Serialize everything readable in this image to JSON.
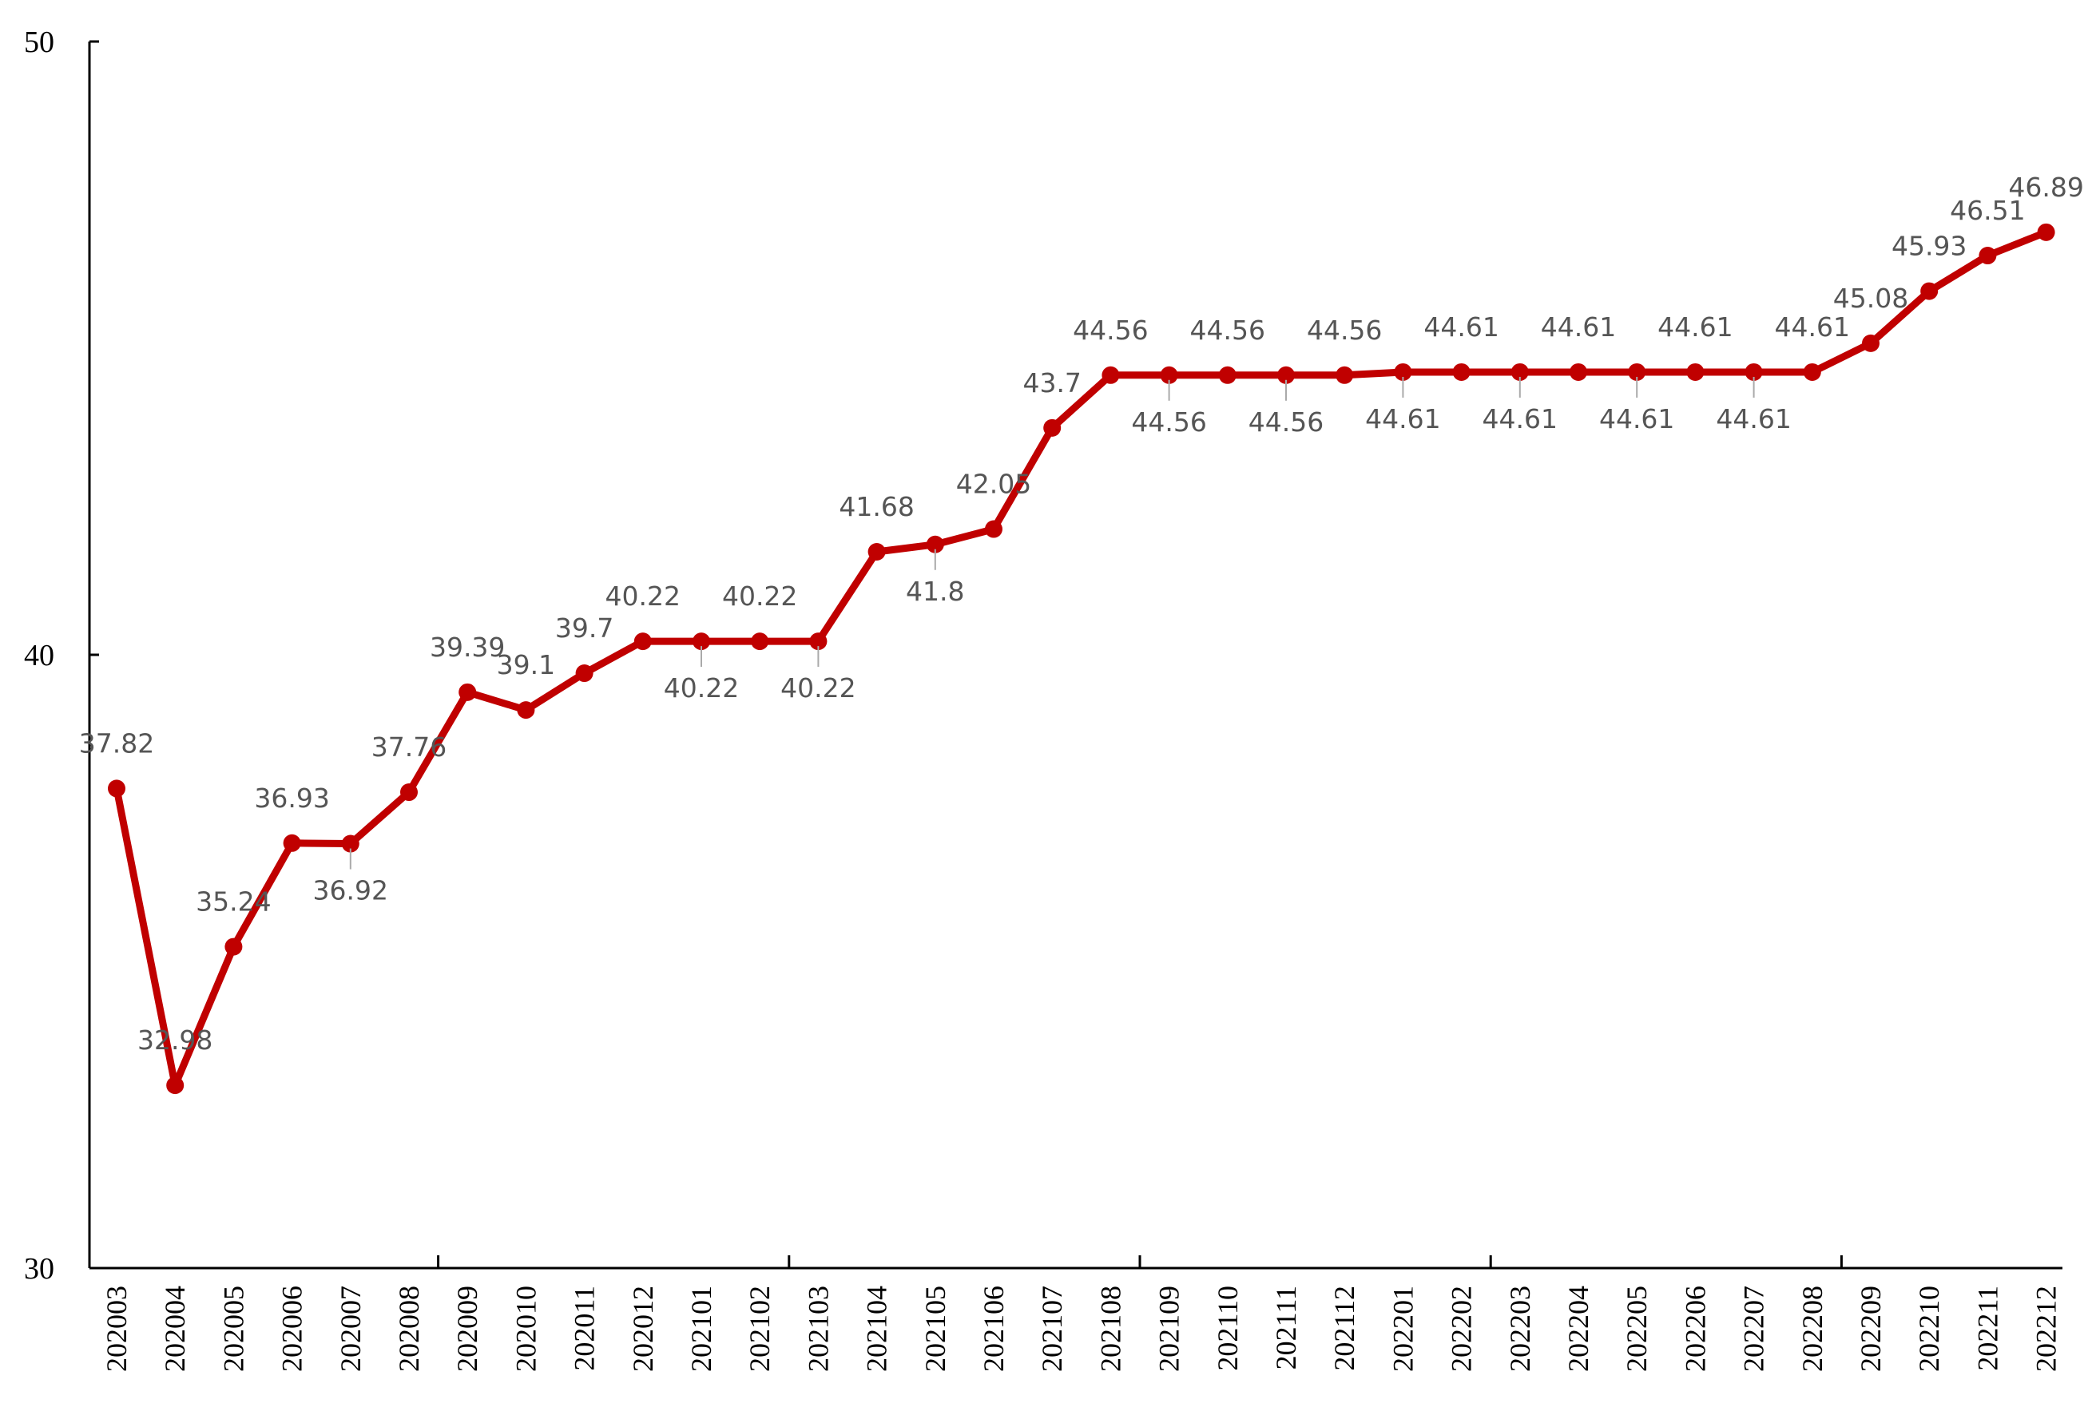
{
  "chart_data": {
    "type": "line",
    "title": "",
    "xlabel": "",
    "ylabel": "",
    "ylim": [
      30,
      50
    ],
    "yticks": [
      "30",
      "40",
      "50"
    ],
    "grid": false,
    "legend": "none",
    "categories": [
      "202003",
      "202004",
      "202005",
      "202006",
      "202007",
      "202008",
      "202009",
      "202010",
      "202011",
      "202012",
      "202101",
      "202102",
      "202103",
      "202104",
      "202105",
      "202106",
      "202107",
      "202108",
      "202109",
      "202110",
      "202111",
      "202112",
      "202201",
      "202202",
      "202203",
      "202204",
      "202205",
      "202206",
      "202207",
      "202208",
      "202209",
      "202210",
      "202211",
      "202212"
    ],
    "series": [
      {
        "values": [
          37.82,
          32.98,
          35.24,
          36.93,
          36.92,
          37.76,
          39.39,
          39.1,
          39.7,
          40.22,
          40.22,
          40.22,
          40.22,
          41.68,
          41.8,
          42.05,
          43.7,
          44.56,
          44.56,
          44.56,
          44.56,
          44.56,
          44.61,
          44.61,
          44.61,
          44.61,
          44.61,
          44.61,
          44.61,
          44.61,
          45.08,
          45.93,
          46.51,
          46.89
        ],
        "labels": [
          "37.82",
          "32.98",
          "35.24",
          "36.93",
          "36.92",
          "37.76",
          "39.39",
          "39.1",
          "39.7",
          "40.22",
          "40.22",
          "40.22",
          "40.22",
          "41.68",
          "41.8",
          "42.05",
          "43.7",
          "44.56",
          "44.56",
          "44.56",
          "44.56",
          "44.56",
          "44.61",
          "44.61",
          "44.61",
          "44.61",
          "44.61",
          "44.61",
          "44.61",
          "44.61",
          "45.08",
          "45.93",
          "46.51",
          "46.89"
        ],
        "color": "#C00000"
      }
    ]
  }
}
